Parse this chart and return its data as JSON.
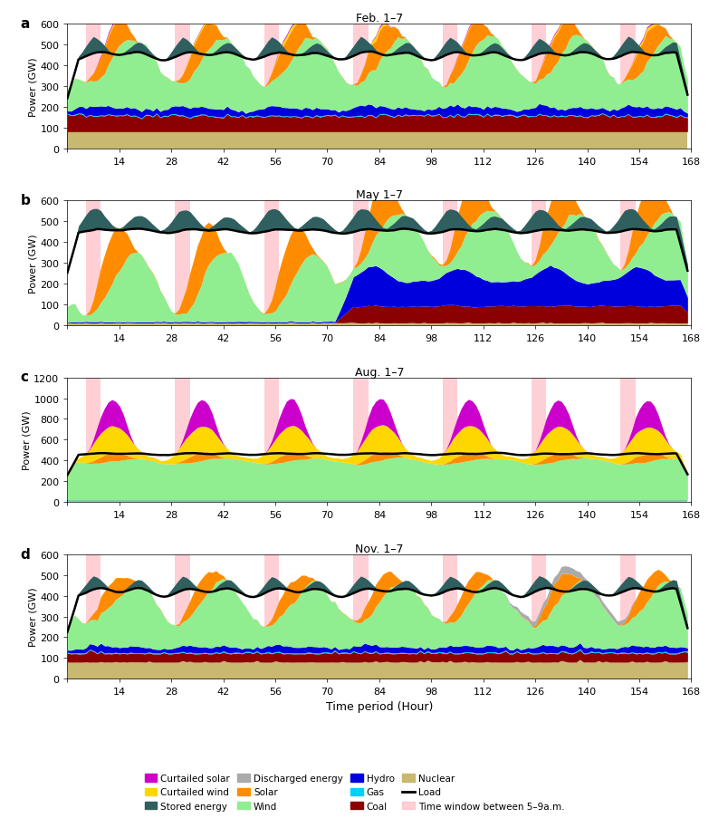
{
  "titles": [
    "Feb. 1–7",
    "May 1–7",
    "Aug. 1–7",
    "Nov. 1–7"
  ],
  "panel_labels": [
    "a",
    "b",
    "c",
    "d"
  ],
  "ylims": [
    600,
    600,
    1200,
    600
  ],
  "yticks": [
    [
      0,
      100,
      200,
      300,
      400,
      500,
      600
    ],
    [
      0,
      100,
      200,
      300,
      400,
      500,
      600
    ],
    [
      0,
      200,
      400,
      600,
      800,
      1000,
      1200
    ],
    [
      0,
      100,
      200,
      300,
      400,
      500,
      600
    ]
  ],
  "xticks": [
    0,
    14,
    28,
    42,
    56,
    70,
    84,
    98,
    112,
    126,
    140,
    154,
    168
  ],
  "xlabel": "Time period (Hour)",
  "ylabel": "Power (GW)",
  "colors": {
    "nuclear": "#c8b870",
    "coal": "#8b0000",
    "gas": "#00cfff",
    "hydro": "#0000dd",
    "wind": "#90ee90",
    "solar": "#ff8c00",
    "curtailed_solar": "#cc00cc",
    "curtailed_wind": "#ffd700",
    "stored_energy": "#2f5f5f",
    "discharged_energy": "#aaaaaa",
    "load": "#000000",
    "time_window": "#ffb6c1"
  },
  "legend_row1": [
    "curtailed_solar",
    "curtailed_wind",
    "stored_energy",
    "discharged_energy"
  ],
  "legend_row1_labels": [
    "Curtailed solar",
    "Curtailed wind",
    "Stored energy",
    "Discharged energy"
  ],
  "legend_row2": [
    "solar",
    "wind",
    "hydro",
    "gas",
    "coal",
    "nuclear",
    "load",
    "time_window"
  ],
  "legend_row2_labels": [
    "Solar",
    "Wind",
    "Hydro",
    "Gas",
    "Coal",
    "Nuclear",
    "Load",
    "Time window between 5–9a.m."
  ]
}
